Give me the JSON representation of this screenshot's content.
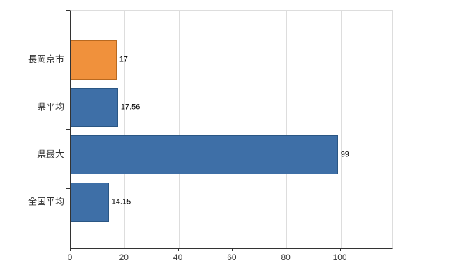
{
  "chart_data": {
    "type": "bar",
    "orientation": "horizontal",
    "title": "",
    "xlabel": "",
    "ylabel": "",
    "categories": [
      "長岡京市",
      "県平均",
      "県最大",
      "全国平均"
    ],
    "values": [
      17,
      17.56,
      99,
      14.15
    ],
    "value_labels": [
      "17",
      "17.56",
      "99",
      "14.15"
    ],
    "bar_colors": [
      "#f0913c",
      "#3e6fa7",
      "#3e6fa7",
      "#3e6fa7"
    ],
    "bar_border_colors": [
      "#b9691f",
      "#2a5684",
      "#2a5684",
      "#2a5684"
    ],
    "xlim": [
      0,
      119
    ],
    "xticks": [
      0,
      20,
      40,
      60,
      80,
      100
    ],
    "grid": "vertical",
    "legend": "none"
  },
  "colors": {
    "background": "#ffffff",
    "grid": "#dddddd",
    "axis": "#333333",
    "text": "#333333",
    "value_text": "#000000"
  }
}
